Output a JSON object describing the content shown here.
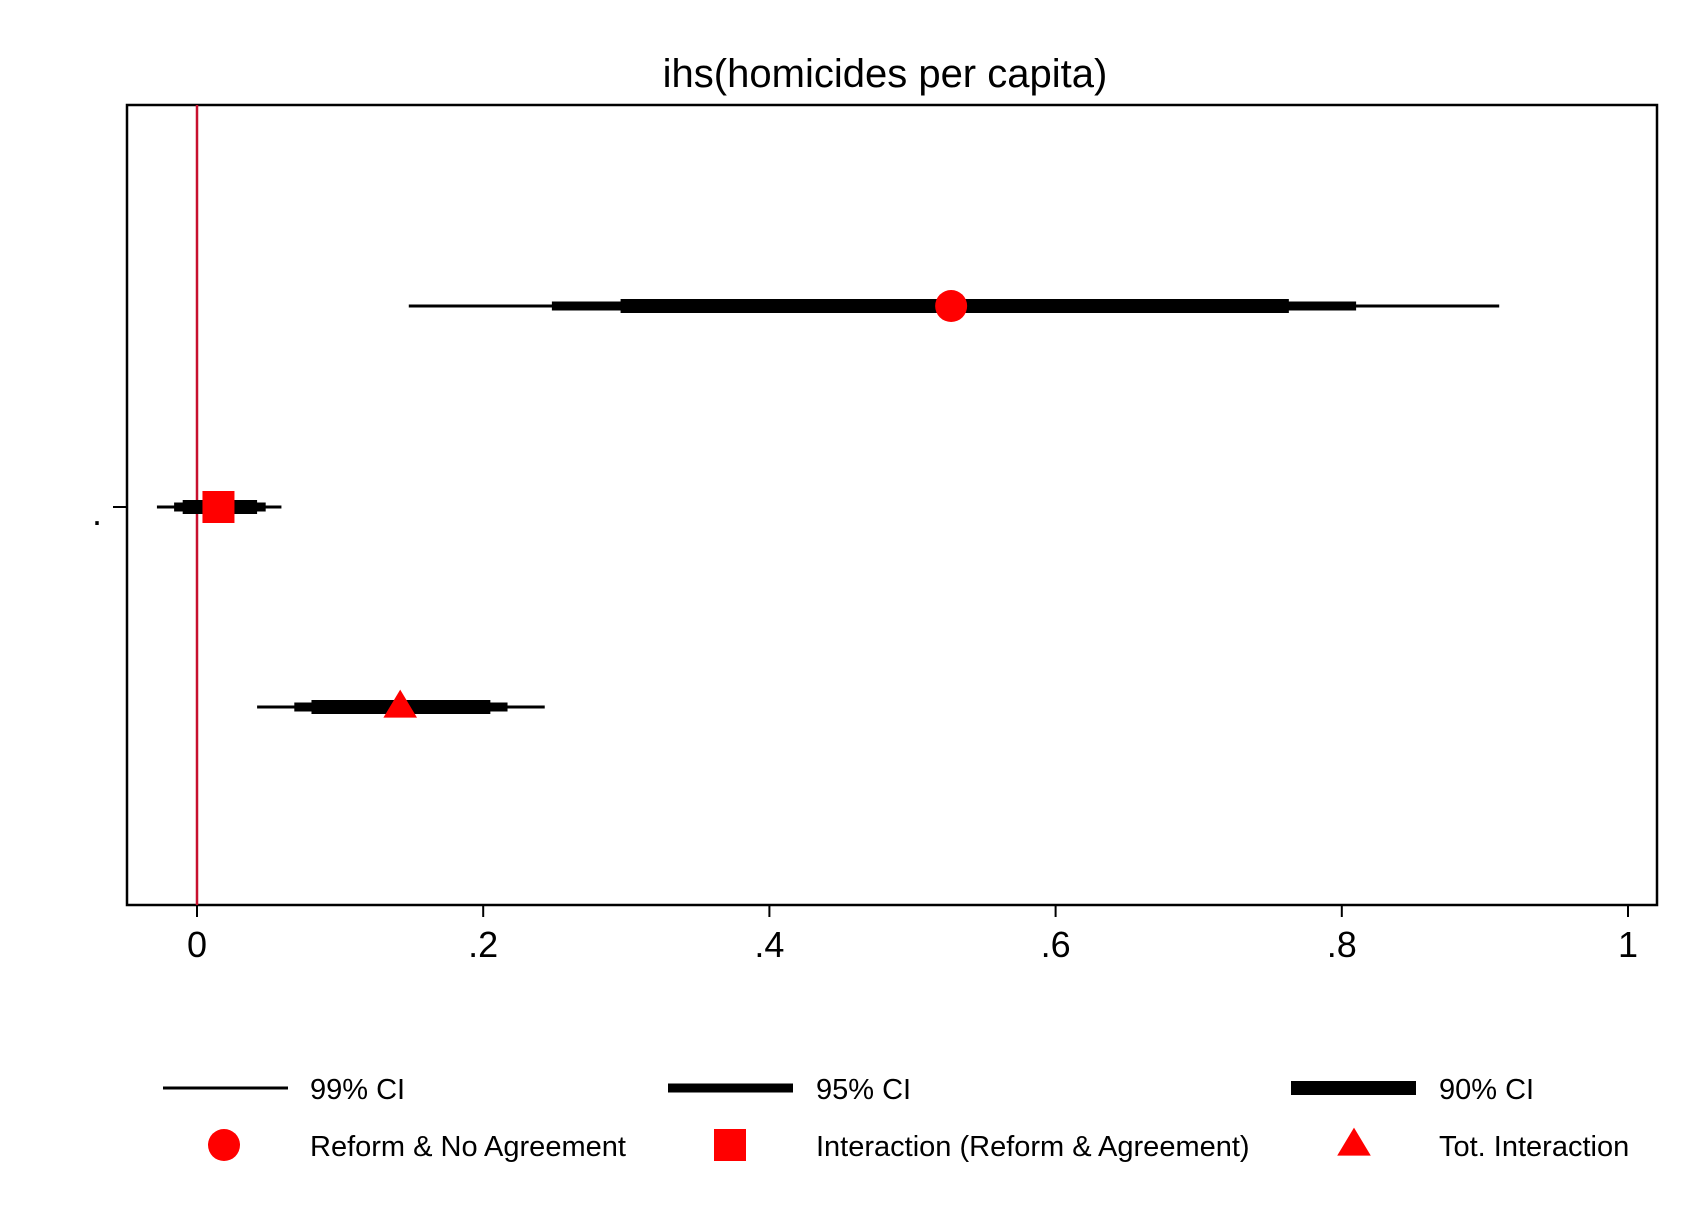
{
  "chart_data": {
    "type": "coefficient_plot",
    "title": "ihs(homicides per capita)",
    "xlabel": "",
    "ylabel": "",
    "xlim": [
      -0.05,
      1.02
    ],
    "x_ticks": [
      0,
      0.2,
      0.4,
      0.6,
      0.8,
      1
    ],
    "x_tick_labels": [
      "0",
      ".2",
      ".4",
      ".6",
      ".8",
      "1"
    ],
    "y_tick_labels": [
      "."
    ],
    "reference_line": {
      "x": 0,
      "color": "#c8102e"
    },
    "marker_color": "#ff0000",
    "ci_color": "#000000",
    "grid": false,
    "series": [
      {
        "name": "Reform & No Agreement",
        "marker": "circle",
        "estimate": 0.527,
        "ci99": [
          0.148,
          0.91
        ],
        "ci95": [
          0.248,
          0.81
        ],
        "ci90": [
          0.296,
          0.763
        ]
      },
      {
        "name": "Interaction (Reform & Agreement)",
        "marker": "square",
        "estimate": 0.015,
        "ci99": [
          -0.028,
          0.059
        ],
        "ci95": [
          -0.016,
          0.048
        ],
        "ci90": [
          -0.01,
          0.042
        ]
      },
      {
        "name": "Tot. Interaction",
        "marker": "triangle",
        "estimate": 0.142,
        "ci99": [
          0.042,
          0.243
        ],
        "ci95": [
          0.068,
          0.217
        ],
        "ci90": [
          0.08,
          0.205
        ]
      }
    ],
    "legend": {
      "position": "bottom",
      "ci_entries": [
        "99% CI",
        "95% CI",
        "90% CI"
      ],
      "marker_entries": [
        "Reform & No Agreement",
        "Interaction (Reform & Agreement)",
        "Tot. Interaction"
      ]
    }
  }
}
